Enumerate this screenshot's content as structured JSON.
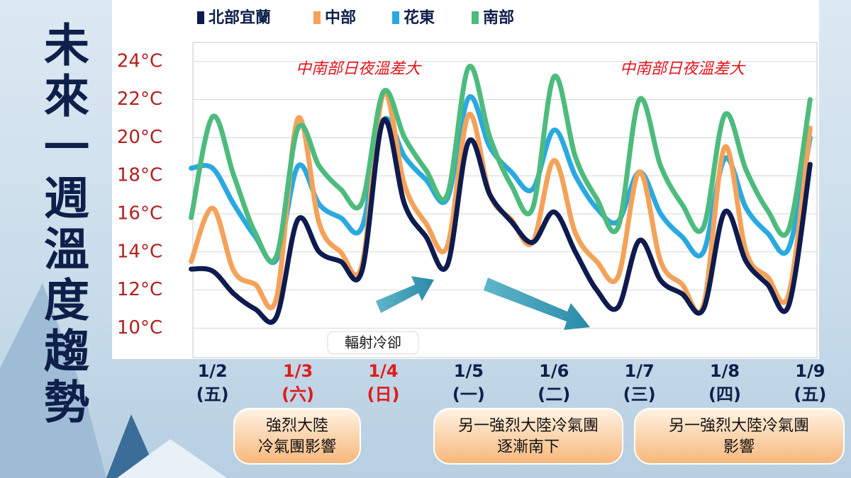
{
  "header": {
    "title": "未來一週溫度趨勢"
  },
  "chart_data": {
    "type": "line",
    "x": [
      -0.25,
      0,
      0.25,
      0.5,
      0.75,
      1,
      1.25,
      1.5,
      1.75,
      2,
      2.25,
      2.5,
      2.75,
      3,
      3.25,
      3.5,
      3.75,
      4,
      4.25,
      4.5,
      4.75,
      5,
      5.25,
      5.5,
      5.75,
      6,
      6.25,
      6.5,
      6.75,
      7
    ],
    "xlim": [
      -0.23,
      7.08
    ],
    "categories": [
      "1/2",
      "1/3",
      "1/4",
      "1/5",
      "1/6",
      "1/7",
      "1/8",
      "1/9"
    ],
    "weekdays": [
      "(五)",
      "(六)",
      "(日)",
      "(一)",
      "(二)",
      "(三)",
      "(四)",
      "(五)"
    ],
    "category_colors": [
      "#0e1f4a",
      "#e01b1b",
      "#e01b1b",
      "#0e1f4a",
      "#0e1f4a",
      "#0e1f4a",
      "#0e1f4a",
      "#0e1f4a"
    ],
    "ylim": [
      8.45,
      25
    ],
    "yticks": [
      {
        "value": 10,
        "label": "10°C"
      },
      {
        "value": 12,
        "label": "12°C"
      },
      {
        "value": 14,
        "label": "14°C"
      },
      {
        "value": 16,
        "label": "16°C"
      },
      {
        "value": 18,
        "label": "18°C"
      },
      {
        "value": 20,
        "label": "20°C"
      },
      {
        "value": 22,
        "label": "22°C"
      },
      {
        "value": 24,
        "label": "24°C"
      }
    ],
    "grid": true,
    "series": [
      {
        "name": "北部宜蘭",
        "color": "#0d1b4f",
        "values": [
          13.1,
          13.0,
          11.8,
          11.0,
          10.6,
          15.7,
          14.0,
          13.5,
          13.0,
          20.9,
          16.5,
          14.8,
          13.3,
          19.8,
          17.0,
          15.6,
          14.5,
          16.1,
          14.0,
          12.0,
          11.1,
          14.6,
          12.5,
          11.8,
          11.0,
          16.1,
          13.5,
          12.3,
          11.2,
          18.6
        ]
      },
      {
        "name": "中部",
        "color": "#f4a25a",
        "values": [
          13.5,
          16.3,
          13.0,
          12.3,
          11.6,
          21.0,
          15.5,
          14.0,
          13.3,
          22.3,
          17.5,
          15.5,
          14.3,
          21.2,
          17.0,
          15.7,
          14.5,
          18.8,
          15.0,
          13.5,
          12.7,
          18.2,
          13.5,
          12.3,
          11.2,
          19.5,
          14.0,
          12.7,
          11.8,
          20.5
        ]
      },
      {
        "name": "花東",
        "color": "#2aa9e0",
        "values": [
          18.4,
          18.4,
          16.5,
          14.8,
          13.6,
          18.5,
          16.5,
          15.8,
          15.3,
          20.9,
          19.0,
          17.8,
          16.8,
          22.1,
          19.5,
          18.2,
          17.3,
          20.4,
          18.0,
          16.3,
          15.6,
          18.2,
          16.0,
          14.8,
          14.0,
          18.9,
          16.3,
          15.0,
          14.2,
          20.0
        ]
      },
      {
        "name": "南部",
        "color": "#4dbb7d",
        "values": [
          15.8,
          21.1,
          18.0,
          15.0,
          13.8,
          20.5,
          18.5,
          17.3,
          16.6,
          22.4,
          20.0,
          18.3,
          17.0,
          23.7,
          20.0,
          17.5,
          16.3,
          23.2,
          19.0,
          16.8,
          15.3,
          22.0,
          18.5,
          16.5,
          15.3,
          21.2,
          18.3,
          16.2,
          15.2,
          22.0
        ]
      }
    ],
    "annotations": [
      "中南部日夜溫差大",
      "中南部日夜溫差大",
      "輻射冷卻"
    ]
  },
  "notes": [
    {
      "lines": [
        "強烈大陸",
        "冷氣團影響"
      ]
    },
    {
      "lines": [
        "另一強烈大陸冷氣團",
        "逐漸南下"
      ]
    },
    {
      "lines": [
        "另一強烈大陸冷氣團",
        "影響"
      ]
    }
  ]
}
